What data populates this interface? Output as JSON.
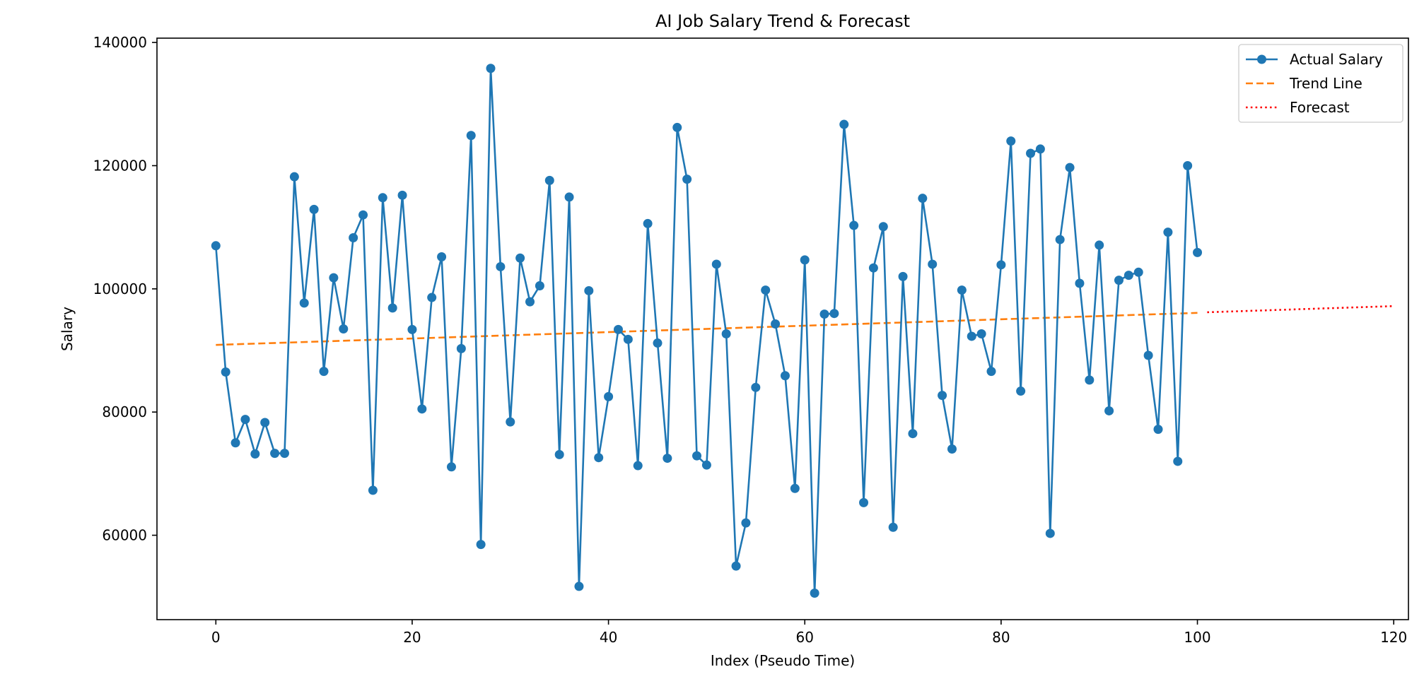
{
  "chart_data": {
    "type": "line",
    "title": "AI Job Salary Trend & Forecast",
    "xlabel": "Index (Pseudo Time)",
    "ylabel": "Salary",
    "xlim": [
      -6,
      121.5
    ],
    "ylim": [
      46300,
      140700
    ],
    "x_ticks": [
      0,
      20,
      40,
      60,
      80,
      100,
      120
    ],
    "y_ticks": [
      60000,
      80000,
      100000,
      120000,
      140000
    ],
    "grid": false,
    "legend_position": "top-right",
    "colors": {
      "actual": "#1f77b4",
      "trend": "#ff7f0e",
      "forecast": "#ff0000"
    },
    "series": [
      {
        "name": "Actual Salary",
        "style": "solid-with-markers",
        "x_start": 0,
        "values": [
          107000,
          86500,
          75000,
          78800,
          73200,
          78300,
          73300,
          73300,
          118200,
          97700,
          112900,
          86600,
          101800,
          93500,
          108300,
          112000,
          67300,
          114800,
          96900,
          115200,
          93400,
          80500,
          98600,
          105200,
          71100,
          90300,
          124900,
          58500,
          135800,
          103600,
          78400,
          105000,
          97900,
          100500,
          117600,
          73100,
          114900,
          51700,
          99700,
          72600,
          82500,
          93400,
          91800,
          71300,
          110600,
          91200,
          72500,
          126200,
          117800,
          72900,
          71400,
          104000,
          92700,
          55000,
          62000,
          84000,
          99800,
          94300,
          85900,
          67600,
          104700,
          50600,
          95900,
          96000,
          126700,
          110300,
          65300,
          103400,
          110100,
          61300,
          102000,
          76500,
          114700,
          104000,
          82700,
          74000,
          99800,
          92300,
          92700,
          86600,
          103900,
          124000,
          83400,
          122000,
          122700,
          60300,
          108000,
          119700,
          100900,
          85200,
          107100,
          80200,
          101400,
          102200,
          102700,
          89200,
          77200,
          109200,
          72000,
          120000,
          105900
        ]
      },
      {
        "name": "Trend Line",
        "style": "dashed",
        "x": [
          0,
          100
        ],
        "values": [
          90900,
          96100
        ]
      },
      {
        "name": "Forecast",
        "style": "dotted",
        "x": [
          101,
          120
        ],
        "values": [
          96200,
          97200
        ]
      }
    ]
  }
}
